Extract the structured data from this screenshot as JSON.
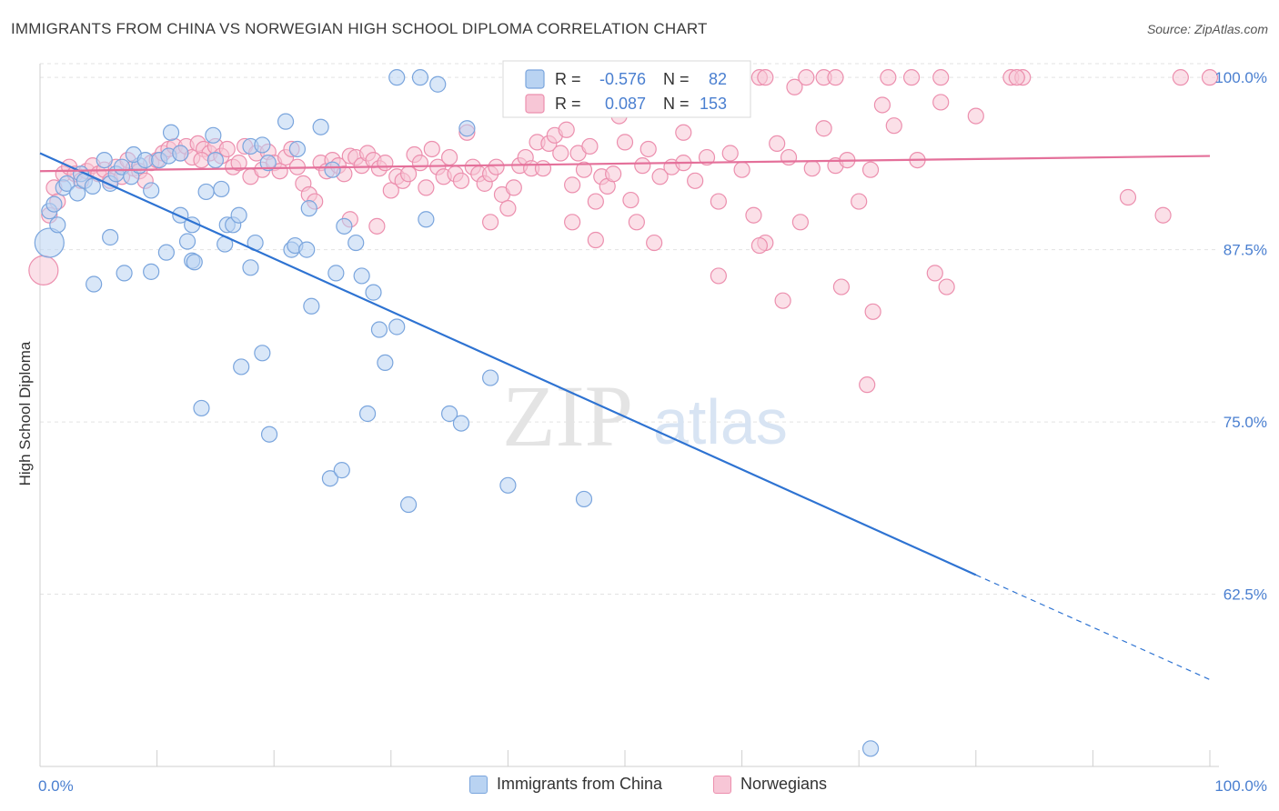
{
  "header": {
    "title": "IMMIGRANTS FROM CHINA VS NORWEGIAN HIGH SCHOOL DIPLOMA CORRELATION CHART",
    "source": "Source: ZipAtlas.com"
  },
  "watermark": {
    "zip": "ZIP",
    "atlas": "atlas"
  },
  "colors": {
    "blue_fill": "#b9d3f2",
    "blue_stroke": "#7aa5dd",
    "blue_line": "#2e73d2",
    "pink_fill": "#f7c6d6",
    "pink_stroke": "#ec8fae",
    "pink_line": "#e4709a",
    "axis_text_blue": "#4a7fd0",
    "grid": "#e3e3e3"
  },
  "stats_legend": {
    "rows": [
      {
        "r_label": "R =",
        "r_value": "-0.576",
        "n_label": "N =",
        "n_value": "82",
        "series": "blue"
      },
      {
        "r_label": "R =",
        "r_value": "0.087",
        "n_label": "N =",
        "n_value": "153",
        "series": "pink"
      }
    ]
  },
  "chart_data": {
    "type": "scatter",
    "title": "IMMIGRANTS FROM CHINA VS NORWEGIAN HIGH SCHOOL DIPLOMA CORRELATION CHART",
    "xlabel": "",
    "ylabel": "High School Diploma",
    "xlim": [
      0,
      100
    ],
    "ylim": [
      50,
      101
    ],
    "x_tick_labels": [
      "0.0%",
      "100.0%"
    ],
    "y_ticks": [
      62.5,
      75.0,
      87.5,
      100.0
    ],
    "y_tick_labels": [
      "62.5%",
      "75.0%",
      "87.5%",
      "100.0%"
    ],
    "grid": true,
    "legend_position": "bottom",
    "series": [
      {
        "name": "Immigrants from China",
        "color": "blue",
        "trendline": {
          "x1": 0,
          "y1": 94.5,
          "x2": 80,
          "y2": 63.9,
          "dashed_to_x": 100,
          "dashed_to_y": 56.3
        },
        "points": [
          [
            0.8,
            88.0
          ],
          [
            0.8,
            90.3
          ],
          [
            1.2,
            90.8
          ],
          [
            1.5,
            89.3
          ],
          [
            2.0,
            92.0
          ],
          [
            2.3,
            92.3
          ],
          [
            3.2,
            91.6
          ],
          [
            3.5,
            93.0
          ],
          [
            3.8,
            92.5
          ],
          [
            4.5,
            92.1
          ],
          [
            5.5,
            94.0
          ],
          [
            6.0,
            92.3
          ],
          [
            6.5,
            93.0
          ],
          [
            7.0,
            93.5
          ],
          [
            7.8,
            92.8
          ],
          [
            8.5,
            93.6
          ],
          [
            8.0,
            94.4
          ],
          [
            9.0,
            94.0
          ],
          [
            9.5,
            91.8
          ],
          [
            10.2,
            94.0
          ],
          [
            11.0,
            94.3
          ],
          [
            11.2,
            96.0
          ],
          [
            12.0,
            94.5
          ],
          [
            12.0,
            90.0
          ],
          [
            13.0,
            89.3
          ],
          [
            14.2,
            91.7
          ],
          [
            14.8,
            95.8
          ],
          [
            15.0,
            94.0
          ],
          [
            15.5,
            91.9
          ],
          [
            16.0,
            89.3
          ],
          [
            16.5,
            89.3
          ],
          [
            17.0,
            90.0
          ],
          [
            18.0,
            95.0
          ],
          [
            19.0,
            95.1
          ],
          [
            19.5,
            93.8
          ],
          [
            21.0,
            96.8
          ],
          [
            22.0,
            94.8
          ],
          [
            21.5,
            87.5
          ],
          [
            23.0,
            90.5
          ],
          [
            24.0,
            96.4
          ],
          [
            25.0,
            93.3
          ],
          [
            26.0,
            89.2
          ],
          [
            27.0,
            88.0
          ],
          [
            27.5,
            85.6
          ],
          [
            28.5,
            84.4
          ],
          [
            29.0,
            81.7
          ],
          [
            29.5,
            79.3
          ],
          [
            30.5,
            81.9
          ],
          [
            30.5,
            100.0
          ],
          [
            32.5,
            100.0
          ],
          [
            33.0,
            89.7
          ],
          [
            34.0,
            99.5
          ],
          [
            36.5,
            96.3
          ],
          [
            38.5,
            78.2
          ],
          [
            6.0,
            88.4
          ],
          [
            4.6,
            85.0
          ],
          [
            7.2,
            85.8
          ],
          [
            9.5,
            85.9
          ],
          [
            10.8,
            87.3
          ],
          [
            12.6,
            88.1
          ],
          [
            13.0,
            86.7
          ],
          [
            13.2,
            86.6
          ],
          [
            15.8,
            87.9
          ],
          [
            18.0,
            86.2
          ],
          [
            18.4,
            88.0
          ],
          [
            21.8,
            87.8
          ],
          [
            22.8,
            87.5
          ],
          [
            23.2,
            83.4
          ],
          [
            25.3,
            85.8
          ],
          [
            17.2,
            79.0
          ],
          [
            19.0,
            80.0
          ],
          [
            13.8,
            76.0
          ],
          [
            19.6,
            74.1
          ],
          [
            24.8,
            70.9
          ],
          [
            25.8,
            71.5
          ],
          [
            28.0,
            75.6
          ],
          [
            31.5,
            69.0
          ],
          [
            35.0,
            75.6
          ],
          [
            36.0,
            74.9
          ],
          [
            40.0,
            70.4
          ],
          [
            46.5,
            69.4
          ],
          [
            71.0,
            51.3
          ]
        ]
      },
      {
        "name": "Norwegians",
        "color": "pink",
        "trendline": {
          "x1": 0,
          "y1": 93.2,
          "x2": 100,
          "y2": 94.3
        },
        "points": [
          [
            0.3,
            86.0
          ],
          [
            0.8,
            90.0
          ],
          [
            1.2,
            92.0
          ],
          [
            1.5,
            91.0
          ],
          [
            2.0,
            93.0
          ],
          [
            2.5,
            93.5
          ],
          [
            3.0,
            93.0
          ],
          [
            3.5,
            92.5
          ],
          [
            4.0,
            93.2
          ],
          [
            4.5,
            93.6
          ],
          [
            5.0,
            93.0
          ],
          [
            5.5,
            93.3
          ],
          [
            6.0,
            92.5
          ],
          [
            6.5,
            93.5
          ],
          [
            7.0,
            92.8
          ],
          [
            7.5,
            94.0
          ],
          [
            8.0,
            93.4
          ],
          [
            8.5,
            93.2
          ],
          [
            9.0,
            92.5
          ],
          [
            9.5,
            93.8
          ],
          [
            10.0,
            94.0
          ],
          [
            10.5,
            94.5
          ],
          [
            11.0,
            94.8
          ],
          [
            11.5,
            95.0
          ],
          [
            12.0,
            94.5
          ],
          [
            12.5,
            95.0
          ],
          [
            13.0,
            94.2
          ],
          [
            13.5,
            95.2
          ],
          [
            14.0,
            94.8
          ],
          [
            14.5,
            94.5
          ],
          [
            15.0,
            95.0
          ],
          [
            15.5,
            94.3
          ],
          [
            16.0,
            94.8
          ],
          [
            16.5,
            93.5
          ],
          [
            17.0,
            93.8
          ],
          [
            17.5,
            95.0
          ],
          [
            18.0,
            92.8
          ],
          [
            18.5,
            94.5
          ],
          [
            19.0,
            93.3
          ],
          [
            19.5,
            94.6
          ],
          [
            20.0,
            93.8
          ],
          [
            20.5,
            93.2
          ],
          [
            21.0,
            94.2
          ],
          [
            21.5,
            94.8
          ],
          [
            22.0,
            93.5
          ],
          [
            22.5,
            92.3
          ],
          [
            23.0,
            91.5
          ],
          [
            23.5,
            91.0
          ],
          [
            24.0,
            93.8
          ],
          [
            24.5,
            93.2
          ],
          [
            25.0,
            94.0
          ],
          [
            25.5,
            93.6
          ],
          [
            26.0,
            93.0
          ],
          [
            26.5,
            94.3
          ],
          [
            27.0,
            94.2
          ],
          [
            27.5,
            93.6
          ],
          [
            28.0,
            94.5
          ],
          [
            28.5,
            94.0
          ],
          [
            29.0,
            93.4
          ],
          [
            29.5,
            93.8
          ],
          [
            30.0,
            91.8
          ],
          [
            30.5,
            92.8
          ],
          [
            31.0,
            92.5
          ],
          [
            31.5,
            93.0
          ],
          [
            32.0,
            94.4
          ],
          [
            32.5,
            93.8
          ],
          [
            33.0,
            92.0
          ],
          [
            33.5,
            94.8
          ],
          [
            34.0,
            93.5
          ],
          [
            34.5,
            92.8
          ],
          [
            35.0,
            94.2
          ],
          [
            35.5,
            93.0
          ],
          [
            36.0,
            92.5
          ],
          [
            36.5,
            96.0
          ],
          [
            37.0,
            93.5
          ],
          [
            37.5,
            93.0
          ],
          [
            38.0,
            92.3
          ],
          [
            38.5,
            93.0
          ],
          [
            39.0,
            93.5
          ],
          [
            39.5,
            91.5
          ],
          [
            40.0,
            90.5
          ],
          [
            40.5,
            92.0
          ],
          [
            41.0,
            93.6
          ],
          [
            41.5,
            94.2
          ],
          [
            42.0,
            93.4
          ],
          [
            42.5,
            95.3
          ],
          [
            43.0,
            93.4
          ],
          [
            43.5,
            95.2
          ],
          [
            44.0,
            95.8
          ],
          [
            44.5,
            94.5
          ],
          [
            45.0,
            96.2
          ],
          [
            45.5,
            92.2
          ],
          [
            46.0,
            94.5
          ],
          [
            46.5,
            93.3
          ],
          [
            47.0,
            95.0
          ],
          [
            47.5,
            91.0
          ],
          [
            48.0,
            92.8
          ],
          [
            48.5,
            92.1
          ],
          [
            49.0,
            93.0
          ],
          [
            49.5,
            97.2
          ],
          [
            50.0,
            95.3
          ],
          [
            50.5,
            91.1
          ],
          [
            51.0,
            89.5
          ],
          [
            51.5,
            93.6
          ],
          [
            52.0,
            94.8
          ],
          [
            53.0,
            92.8
          ],
          [
            54.0,
            93.5
          ],
          [
            55.0,
            93.8
          ],
          [
            56.0,
            92.5
          ],
          [
            57.0,
            94.2
          ],
          [
            58.0,
            91.0
          ],
          [
            59.0,
            94.5
          ],
          [
            60.0,
            93.3
          ],
          [
            61.0,
            90.0
          ],
          [
            62.0,
            88.0
          ],
          [
            63.0,
            95.2
          ],
          [
            64.0,
            94.2
          ],
          [
            65.0,
            89.5
          ],
          [
            66.0,
            93.4
          ],
          [
            67.0,
            96.3
          ],
          [
            68.0,
            93.6
          ],
          [
            69.0,
            94.0
          ],
          [
            70.0,
            91.0
          ],
          [
            71.0,
            93.3
          ],
          [
            72.0,
            98.0
          ],
          [
            73.0,
            96.5
          ],
          [
            75.0,
            94.0
          ],
          [
            77.0,
            98.2
          ],
          [
            80.0,
            97.2
          ],
          [
            83.0,
            100.0
          ],
          [
            84.0,
            100.0
          ],
          [
            93.0,
            91.3
          ],
          [
            96.0,
            90.0
          ],
          [
            100.0,
            100.0
          ],
          [
            26.5,
            89.7
          ],
          [
            28.8,
            89.2
          ],
          [
            38.5,
            89.5
          ],
          [
            45.5,
            89.5
          ],
          [
            47.5,
            88.2
          ],
          [
            52.5,
            88.0
          ],
          [
            58.0,
            85.6
          ],
          [
            61.5,
            87.8
          ],
          [
            63.5,
            83.8
          ],
          [
            68.5,
            84.8
          ],
          [
            71.2,
            83.0
          ],
          [
            76.5,
            85.8
          ],
          [
            77.5,
            84.8
          ],
          [
            70.7,
            77.7
          ],
          [
            55.0,
            96.0
          ],
          [
            57.0,
            100.0
          ],
          [
            58.5,
            100.0
          ],
          [
            61.5,
            100.0
          ],
          [
            62.0,
            100.0
          ],
          [
            64.5,
            99.3
          ],
          [
            65.5,
            100.0
          ],
          [
            67.0,
            100.0
          ],
          [
            68.0,
            100.0
          ],
          [
            72.5,
            100.0
          ],
          [
            74.5,
            100.0
          ],
          [
            77.0,
            100.0
          ],
          [
            83.5,
            100.0
          ],
          [
            97.5,
            100.0
          ],
          [
            13.8,
            94.0
          ]
        ]
      }
    ]
  },
  "bottom_legend": [
    {
      "label": "Immigrants from China",
      "color": "blue"
    },
    {
      "label": "Norwegians",
      "color": "pink"
    }
  ]
}
